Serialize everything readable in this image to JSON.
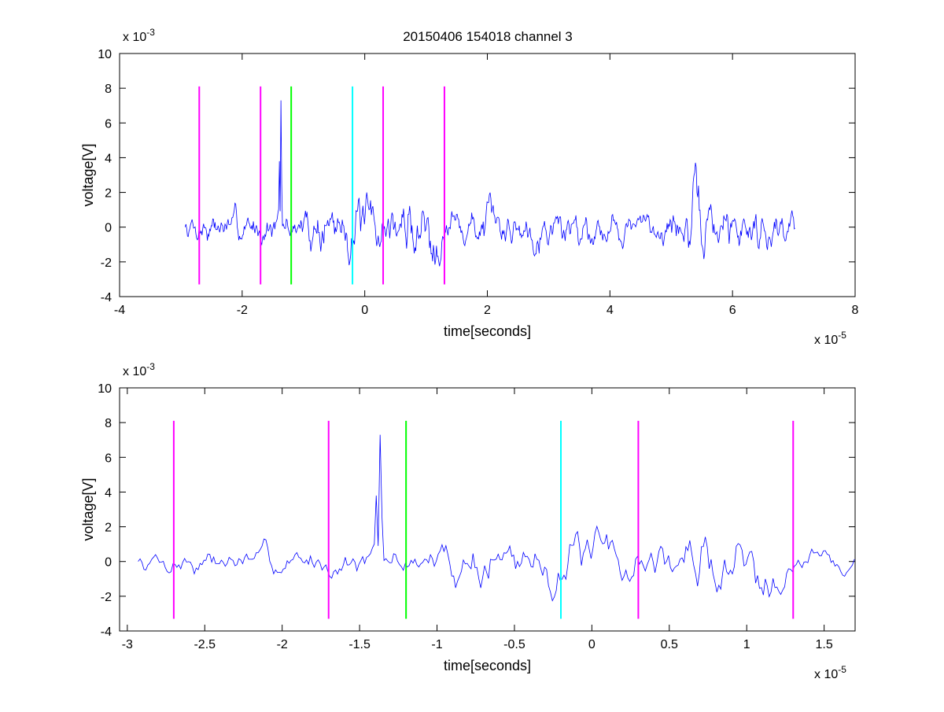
{
  "figure": {
    "title": "20150406 154018 channel 3"
  },
  "chart_data": [
    {
      "type": "line",
      "name": "top",
      "xlabel": "time[seconds]",
      "ylabel": "voltage[V]",
      "x_multiplier": "x 10",
      "x_exponent": "-5",
      "y_multiplier": "x 10",
      "y_exponent": "-3",
      "xlim": [
        -4,
        8
      ],
      "ylim": [
        -4,
        10
      ],
      "xticks": [
        -4,
        -2,
        0,
        2,
        4,
        6,
        8
      ],
      "yticks": [
        -4,
        -2,
        0,
        2,
        4,
        6,
        8,
        10
      ],
      "grid": false,
      "signal": {
        "color": "#0000ff",
        "x_start": -2.93,
        "x_end": 7.03,
        "spikes": [
          [
            -1.37,
            7.3
          ],
          [
            -1.39,
            3.8
          ],
          [
            -1.35,
            2.5
          ]
        ],
        "envelope": [
          [
            -2.93,
            0.9
          ],
          [
            -1.0,
            1.0
          ],
          [
            -0.7,
            1.7
          ],
          [
            0.5,
            1.6
          ],
          [
            1.0,
            2.2
          ],
          [
            1.5,
            1.3
          ],
          [
            3.0,
            1.2
          ],
          [
            4.5,
            0.9
          ],
          [
            5.2,
            1.2
          ],
          [
            5.4,
            2.3
          ],
          [
            5.8,
            1.5
          ],
          [
            7.03,
            1.0
          ]
        ],
        "seed": 7
      },
      "markers": [
        {
          "x": -2.7,
          "color": "#ff00ff"
        },
        {
          "x": -1.7,
          "color": "#ff00ff"
        },
        {
          "x": -1.2,
          "color": "#00ff00"
        },
        {
          "x": -0.2,
          "color": "#00ffff"
        },
        {
          "x": 0.3,
          "color": "#ff00ff"
        },
        {
          "x": 1.3,
          "color": "#ff00ff"
        }
      ],
      "marker_range": [
        -3.3,
        8.1
      ]
    },
    {
      "type": "line",
      "name": "bottom",
      "xlabel": "time[seconds]",
      "ylabel": "voltage[V]",
      "x_multiplier": "x 10",
      "x_exponent": "-5",
      "y_multiplier": "x 10",
      "y_exponent": "-3",
      "xlim": [
        -3.05,
        1.7
      ],
      "ylim": [
        -4,
        10
      ],
      "xticks": [
        -3,
        -2.5,
        -2,
        -1.5,
        -1,
        -0.5,
        0,
        0.5,
        1,
        1.5
      ],
      "yticks": [
        -4,
        -2,
        0,
        2,
        4,
        6,
        8,
        10
      ],
      "grid": false,
      "signal": {
        "color": "#0000ff",
        "x_start": -2.93,
        "x_end": 1.7,
        "spikes": [
          [
            -1.37,
            7.3
          ],
          [
            -1.39,
            3.8
          ],
          [
            -1.35,
            2.5
          ]
        ],
        "envelope": [
          [
            -2.93,
            0.8
          ],
          [
            -1.0,
            1.0
          ],
          [
            -0.75,
            1.8
          ],
          [
            0.4,
            1.6
          ],
          [
            0.8,
            2.3
          ],
          [
            1.0,
            2.4
          ],
          [
            1.3,
            1.2
          ],
          [
            1.7,
            1.0
          ]
        ],
        "seed": 7
      },
      "markers": [
        {
          "x": -2.7,
          "color": "#ff00ff"
        },
        {
          "x": -1.7,
          "color": "#ff00ff"
        },
        {
          "x": -1.2,
          "color": "#00ff00"
        },
        {
          "x": -0.2,
          "color": "#00ffff"
        },
        {
          "x": 0.3,
          "color": "#ff00ff"
        },
        {
          "x": 1.3,
          "color": "#ff00ff"
        }
      ],
      "marker_range": [
        -3.3,
        8.1
      ]
    }
  ]
}
